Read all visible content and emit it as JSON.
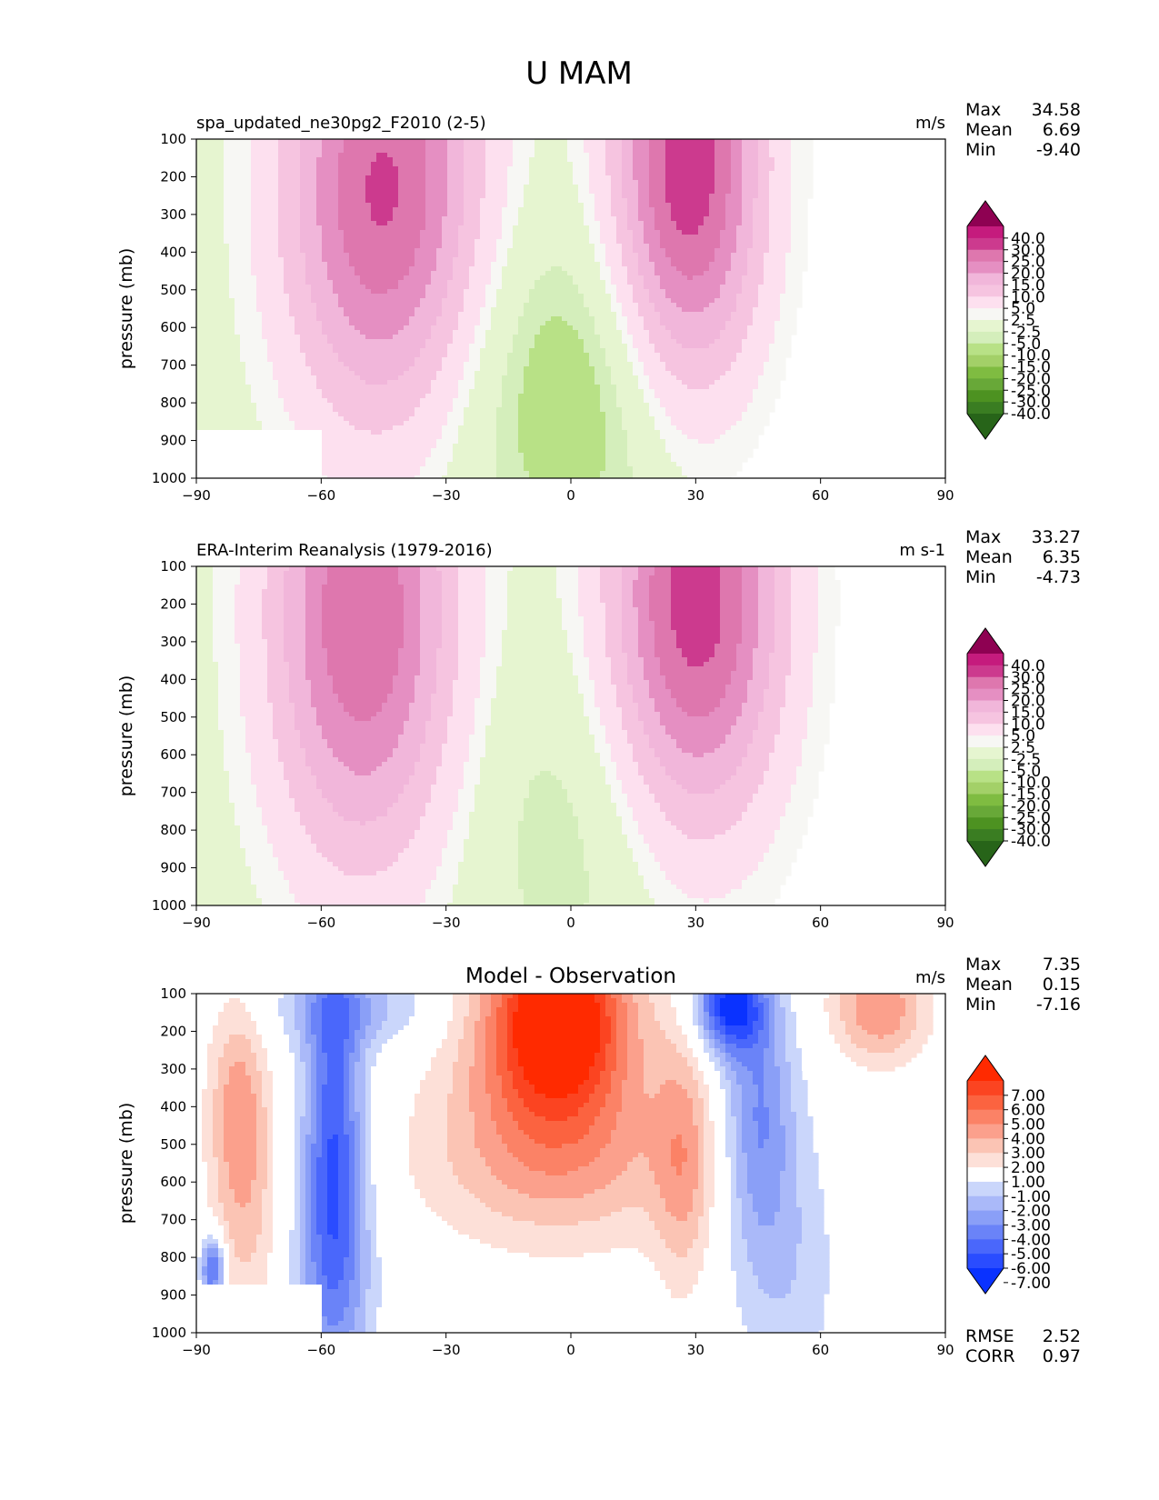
{
  "figure": {
    "title": "U MAM"
  },
  "chart_data": [
    {
      "type": "heatmap",
      "kind": "filled-contour",
      "id": "model",
      "title": "",
      "left_title": "spa_updated_ne30pg2_F2010 (2-5)",
      "units": "m/s",
      "xlabel": "",
      "ylabel": "pressure (mb)",
      "xlim": [
        -90,
        90
      ],
      "ylim": [
        1000,
        100
      ],
      "xticks": [
        "−90",
        "−60",
        "−30",
        "0",
        "30",
        "60",
        "90"
      ],
      "yticks": [
        "100",
        "200",
        "300",
        "400",
        "500",
        "600",
        "700",
        "800",
        "900",
        "1000"
      ],
      "stats": [
        {
          "label": "Max",
          "value": "34.58"
        },
        {
          "label": "Mean",
          "value": "6.69"
        },
        {
          "label": "Min",
          "value": "-9.40"
        }
      ],
      "colorbar": {
        "extend": "both",
        "levels": [
          -40,
          -30,
          -25,
          -20,
          -15,
          -10,
          -5,
          -2.5,
          2.5,
          5,
          10,
          15,
          20,
          25,
          30,
          40
        ],
        "labels": [
          "40.0",
          "30.0",
          "25.0",
          "20.0",
          "15.0",
          "10.0",
          "5.0",
          "2.5",
          "-2.5",
          "-5.0",
          "-10.0",
          "-15.0",
          "-20.0",
          "-25.0",
          "-30.0",
          "-40.0"
        ],
        "colors": [
          "#276419",
          "#3a7d22",
          "#4d9221",
          "#68a838",
          "#7fbc41",
          "#a3d068",
          "#b8e186",
          "#d4eebb",
          "#e6f5d0",
          "#f7f7f4",
          "#fde0ef",
          "#f6c4e0",
          "#f1b6da",
          "#e58fc2",
          "#de77ae",
          "#cc3a8e",
          "#c51b7d",
          "#8e0152"
        ]
      },
      "jets": [
        {
          "lat": -45,
          "p": 240,
          "speed": 31,
          "sx": 17,
          "sy": 440
        },
        {
          "lat": 28,
          "p": 190,
          "speed": 34.5,
          "sx": 13,
          "sy": 430
        },
        {
          "lat": 2,
          "p": 760,
          "speed": -9,
          "sx": 22,
          "sy": 330
        }
      ],
      "missing_below": {
        "lat_max": -60,
        "p_min": 870
      }
    },
    {
      "type": "heatmap",
      "kind": "filled-contour",
      "id": "obs",
      "title": "",
      "left_title": "ERA-Interim Reanalysis (1979-2016)",
      "units": "m s-1",
      "xlabel": "",
      "ylabel": "pressure (mb)",
      "xlim": [
        -90,
        90
      ],
      "ylim": [
        1000,
        100
      ],
      "xticks": [
        "−90",
        "−60",
        "−30",
        "0",
        "30",
        "60",
        "90"
      ],
      "yticks": [
        "100",
        "200",
        "300",
        "400",
        "500",
        "600",
        "700",
        "800",
        "900",
        "1000"
      ],
      "stats": [
        {
          "label": "Max",
          "value": "33.27"
        },
        {
          "label": "Mean",
          "value": "6.35"
        },
        {
          "label": "Min",
          "value": "-4.73"
        }
      ],
      "colorbar": {
        "extend": "both",
        "levels": [
          -40,
          -30,
          -25,
          -20,
          -15,
          -10,
          -5,
          -2.5,
          2.5,
          5,
          10,
          15,
          20,
          25,
          30,
          40
        ],
        "labels": [
          "40.0",
          "30.0",
          "25.0",
          "20.0",
          "15.0",
          "10.0",
          "5.0",
          "2.5",
          "-2.5",
          "-5.0",
          "-10.0",
          "-15.0",
          "-20.0",
          "-25.0",
          "-30.0",
          "-40.0"
        ],
        "colors": [
          "#276419",
          "#3a7d22",
          "#4d9221",
          "#68a838",
          "#7fbc41",
          "#a3d068",
          "#b8e186",
          "#d4eebb",
          "#e6f5d0",
          "#f7f7f4",
          "#fde0ef",
          "#f6c4e0",
          "#f1b6da",
          "#e58fc2",
          "#de77ae",
          "#cc3a8e",
          "#c51b7d",
          "#8e0152"
        ]
      },
      "jets": [
        {
          "lat": -50,
          "p": 230,
          "speed": 30,
          "sx": 16,
          "sy": 470
        },
        {
          "lat": 30,
          "p": 200,
          "speed": 33,
          "sx": 15,
          "sy": 420
        },
        {
          "lat": 0,
          "p": 780,
          "speed": -4.7,
          "sx": 17,
          "sy": 330
        }
      ],
      "missing_below": null
    },
    {
      "type": "heatmap",
      "kind": "filled-contour",
      "id": "diff",
      "title": "Model - Observation",
      "left_title": "",
      "units": "m/s",
      "xlabel": "",
      "ylabel": "pressure (mb)",
      "xlim": [
        -90,
        90
      ],
      "ylim": [
        1000,
        100
      ],
      "xticks": [
        "−90",
        "−60",
        "−30",
        "0",
        "30",
        "60",
        "90"
      ],
      "yticks": [
        "100",
        "200",
        "300",
        "400",
        "500",
        "600",
        "700",
        "800",
        "900",
        "1000"
      ],
      "stats": [
        {
          "label": "Max",
          "value": "7.35"
        },
        {
          "label": "Mean",
          "value": "0.15"
        },
        {
          "label": "Min",
          "value": "-7.16"
        }
      ],
      "extra_stats": [
        {
          "label": "RMSE",
          "value": "2.52"
        },
        {
          "label": "CORR",
          "value": "0.97"
        }
      ],
      "colorbar": {
        "extend": "both",
        "levels": [
          -7,
          -6,
          -5,
          -4,
          -3,
          -2,
          -1,
          1,
          2,
          3,
          4,
          5,
          6,
          7
        ],
        "labels": [
          "7.00",
          "6.00",
          "5.00",
          "4.00",
          "3.00",
          "2.00",
          "1.00",
          "-1.00",
          "-2.00",
          "-3.00",
          "-4.00",
          "-5.00",
          "-6.00",
          "-7.00"
        ],
        "colors": [
          "#0a32ff",
          "#2a4cff",
          "#4a67fb",
          "#6a83f8",
          "#8a9ff7",
          "#aab9f9",
          "#cad6fb",
          "#ffffff",
          "#fde0d8",
          "#fbc4b4",
          "#fba08c",
          "#fb8266",
          "#fb6340",
          "#fb4421",
          "#ff2a00"
        ]
      },
      "anomalies": [
        {
          "lat": -3,
          "p": 140,
          "amp": 7.0,
          "sx": 11,
          "sy": 170
        },
        {
          "lat": -5,
          "p": 300,
          "amp": 3.5,
          "sx": 17,
          "sy": 220
        },
        {
          "lat": -2,
          "p": 560,
          "amp": 2.2,
          "sx": 26,
          "sy": 160
        },
        {
          "lat": -57,
          "p": 430,
          "amp": -5.2,
          "sx": 5,
          "sy": 320
        },
        {
          "lat": -57,
          "p": 850,
          "amp": -3.2,
          "sx": 7,
          "sy": 260
        },
        {
          "lat": -52,
          "p": 140,
          "amp": -2.5,
          "sx": 14,
          "sy": 80
        },
        {
          "lat": 38,
          "p": 130,
          "amp": -7.0,
          "sx": 6,
          "sy": 90
        },
        {
          "lat": 45,
          "p": 420,
          "amp": -3.8,
          "sx": 6,
          "sy": 250
        },
        {
          "lat": 52,
          "p": 800,
          "amp": -1.8,
          "sx": 9,
          "sy": 300
        },
        {
          "lat": 74,
          "p": 140,
          "amp": 4.0,
          "sx": 8,
          "sy": 100
        },
        {
          "lat": -80,
          "p": 380,
          "amp": 3.0,
          "sx": 5,
          "sy": 200
        },
        {
          "lat": -78,
          "p": 700,
          "amp": 2.0,
          "sx": 6,
          "sy": 240
        },
        {
          "lat": 27,
          "p": 540,
          "amp": 2.6,
          "sx": 5,
          "sy": 260
        },
        {
          "lat": -86,
          "p": 830,
          "amp": -6.0,
          "sx": 2,
          "sy": 60
        }
      ],
      "missing_below": {
        "lat_max": -60,
        "p_min": 870
      }
    }
  ]
}
